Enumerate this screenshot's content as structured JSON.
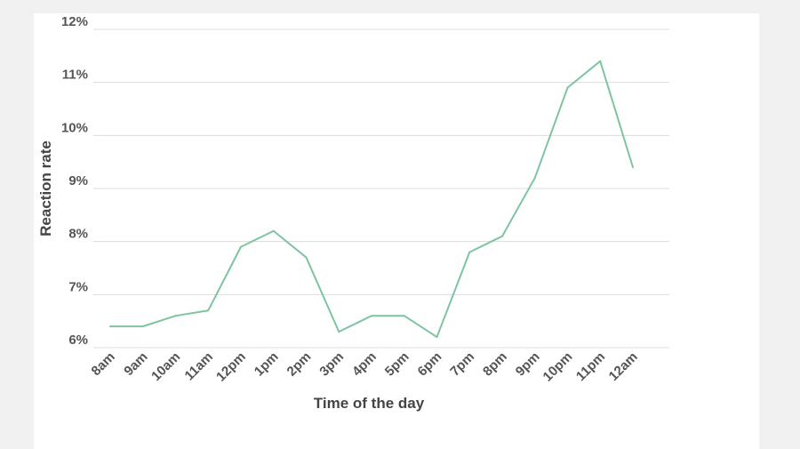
{
  "chart_data": {
    "type": "line",
    "title": "",
    "xlabel": "Time of the day",
    "ylabel": "Reaction rate",
    "categories": [
      "8am",
      "9am",
      "10am",
      "11am",
      "12pm",
      "1pm",
      "2pm",
      "3pm",
      "4pm",
      "5pm",
      "6pm",
      "7pm",
      "8pm",
      "9pm",
      "10pm",
      "11pm",
      "12am"
    ],
    "series": [
      {
        "values": [
          6.4,
          6.4,
          6.6,
          6.7,
          7.9,
          8.2,
          7.7,
          6.3,
          6.6,
          6.6,
          6.2,
          7.8,
          8.1,
          9.2,
          10.9,
          11.4,
          9.4
        ]
      }
    ],
    "ylim": [
      6,
      12
    ],
    "yticks": [
      6,
      7,
      8,
      9,
      10,
      11,
      12
    ],
    "ytick_labels": [
      "6%",
      "7%",
      "8%",
      "9%",
      "10%",
      "11%",
      "12%"
    ],
    "grid": "horizontal",
    "legend": "none",
    "colors": {
      "line": "#7fc4a1",
      "background": "#ffffff",
      "page": "#f1f1f1"
    }
  }
}
